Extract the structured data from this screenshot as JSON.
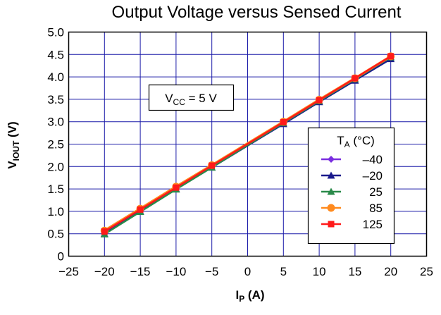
{
  "chart_data": {
    "type": "line",
    "title": "Output Voltage versus Sensed Current",
    "xlabel": {
      "main": "I",
      "sub": "P",
      "unit": " (A)"
    },
    "ylabel": {
      "main": "V",
      "sub": "IOUT",
      "unit": " (V)"
    },
    "xlim": [
      -25,
      25
    ],
    "ylim": [
      0,
      5.0
    ],
    "xticks": [
      -25,
      -20,
      -15,
      -10,
      -5,
      0,
      5,
      10,
      15,
      20,
      25
    ],
    "xtick_labels": [
      "−25",
      "−20",
      "−15",
      "−10",
      "−5",
      "0",
      "5",
      "10",
      "15",
      "20",
      "25"
    ],
    "yticks": [
      0,
      0.5,
      1.0,
      1.5,
      2.0,
      2.5,
      3.0,
      3.5,
      4.0,
      4.5,
      5.0
    ],
    "ytick_labels": [
      "0",
      "0.5",
      "1.0",
      "1.5",
      "2.0",
      "2.5",
      "3.0",
      "3.5",
      "4.0",
      "4.5",
      "5.0"
    ],
    "grid": true,
    "annotation": {
      "main": "V",
      "sub": "CC",
      "rest": " = 5 V"
    },
    "legend": {
      "title_main": "T",
      "title_sub": "A",
      "title_rest": " (°C)",
      "placement": "right"
    },
    "x": [
      -20,
      -15,
      -10,
      -5,
      5,
      10,
      15,
      20
    ],
    "series": [
      {
        "name": "–40",
        "color": "#7a2ee0",
        "marker": "diamond",
        "values": [
          0.53,
          1.03,
          1.52,
          2.01,
          2.98,
          3.47,
          3.96,
          4.45
        ]
      },
      {
        "name": "–20",
        "color": "#1a1a8c",
        "marker": "triangle",
        "values": [
          0.5,
          1.0,
          1.5,
          1.98,
          2.95,
          3.44,
          3.92,
          4.4
        ]
      },
      {
        "name": "25",
        "color": "#2a8a4a",
        "marker": "triangle",
        "values": [
          0.49,
          0.99,
          1.49,
          1.98,
          2.97,
          3.46,
          3.95,
          4.44
        ]
      },
      {
        "name": "85",
        "color": "#ff8a1e",
        "marker": "circle",
        "values": [
          0.57,
          1.06,
          1.55,
          2.03,
          3.0,
          3.49,
          3.97,
          4.46
        ]
      },
      {
        "name": "125",
        "color": "#ff1a1a",
        "marker": "square",
        "values": [
          0.55,
          1.04,
          1.53,
          2.02,
          2.99,
          3.48,
          3.97,
          4.46
        ]
      }
    ]
  }
}
